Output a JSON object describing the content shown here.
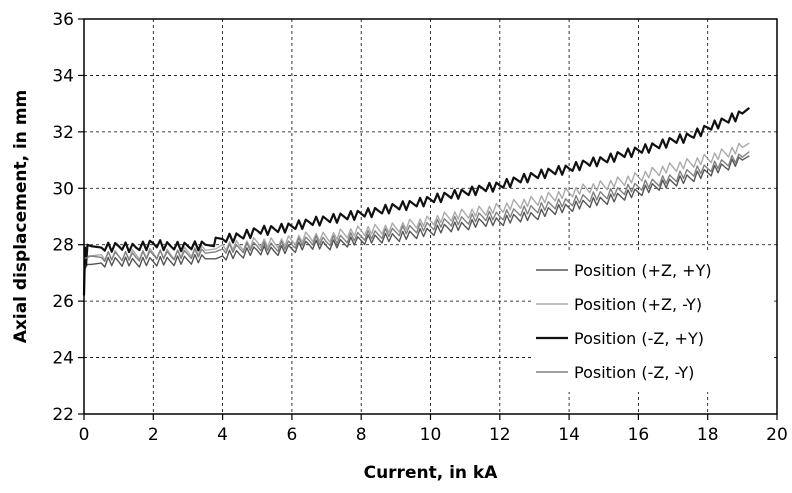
{
  "chart_data": {
    "type": "line",
    "title": "",
    "xlabel": "Current, in kA",
    "ylabel": "Axial displacement, in mm",
    "xlim": [
      0,
      20
    ],
    "ylim": [
      22,
      36
    ],
    "xticks": [
      0,
      2,
      4,
      6,
      8,
      10,
      12,
      14,
      16,
      18,
      20
    ],
    "yticks": [
      22,
      24,
      26,
      28,
      30,
      32,
      34,
      36
    ],
    "xtick_labels": [
      "0",
      "2",
      "4",
      "6",
      "8",
      "10",
      "12",
      "14",
      "16",
      "18",
      "20"
    ],
    "ytick_labels": [
      "22",
      "24",
      "26",
      "28",
      "30",
      "32",
      "34",
      "36"
    ],
    "grid": true,
    "legend_position": "lower-right",
    "series": [
      {
        "name": "Position (+Z, +Y)",
        "color": "#555555",
        "stroke_width": 1.4,
        "x": [
          0,
          0.1,
          0.2,
          0.5,
          1,
          1.5,
          2,
          2.5,
          3,
          3.5,
          3.8,
          4,
          4.5,
          5,
          5.5,
          6,
          6.5,
          7,
          7.5,
          8,
          8.5,
          9,
          9.5,
          10,
          10.5,
          11,
          11.5,
          12,
          12.5,
          13,
          13.5,
          14,
          14.5,
          15,
          15.5,
          16,
          16.5,
          17,
          17.5,
          18,
          18.5,
          19,
          19.2
        ],
        "y": [
          27.1,
          27.3,
          27.3,
          27.35,
          27.4,
          27.35,
          27.4,
          27.4,
          27.45,
          27.5,
          27.5,
          27.6,
          27.65,
          27.8,
          27.75,
          27.85,
          28.0,
          27.95,
          28.05,
          28.15,
          28.2,
          28.25,
          28.35,
          28.45,
          28.6,
          28.65,
          28.8,
          28.8,
          28.95,
          29.0,
          29.2,
          29.3,
          29.45,
          29.55,
          29.7,
          29.85,
          30.05,
          30.2,
          30.35,
          30.55,
          30.75,
          31.0,
          31.15
        ]
      },
      {
        "name": "Position (+Z, -Y)",
        "color": "#aaaaaa",
        "stroke_width": 1.4,
        "x": [
          0,
          0.1,
          0.2,
          0.5,
          1,
          1.5,
          2,
          2.5,
          3,
          3.5,
          3.8,
          4,
          4.5,
          5,
          5.5,
          6,
          6.5,
          7,
          7.5,
          8,
          8.5,
          9,
          9.5,
          10,
          10.5,
          11,
          11.5,
          12,
          12.5,
          13,
          13.5,
          14,
          14.5,
          15,
          15.5,
          16,
          16.5,
          17,
          17.5,
          18,
          18.5,
          19,
          19.2
        ],
        "y": [
          27.5,
          27.6,
          27.6,
          27.65,
          27.6,
          27.65,
          27.7,
          27.65,
          27.75,
          27.8,
          27.85,
          28.0,
          27.95,
          28.1,
          28.05,
          28.15,
          28.3,
          28.25,
          28.4,
          28.5,
          28.55,
          28.6,
          28.75,
          28.85,
          29.0,
          29.1,
          29.2,
          29.3,
          29.45,
          29.55,
          29.7,
          29.85,
          30.0,
          30.1,
          30.25,
          30.4,
          30.6,
          30.75,
          30.9,
          31.05,
          31.25,
          31.45,
          31.6
        ]
      },
      {
        "name": "Position (-Z, +Y)",
        "color": "#111111",
        "stroke_width": 2.2,
        "x": [
          0,
          0.03,
          0.06,
          0.1,
          0.2,
          0.5,
          1,
          1.5,
          2,
          2.5,
          3,
          3.5,
          3.75,
          3.8,
          4,
          4.5,
          5,
          5.5,
          6,
          6.5,
          7,
          7.5,
          8,
          8.5,
          9,
          9.5,
          10,
          10.5,
          11,
          11.5,
          12,
          12.5,
          13,
          13.5,
          14,
          14.5,
          15,
          15.5,
          16,
          16.5,
          17,
          17.5,
          18,
          18.5,
          19,
          19.2
        ],
        "y": [
          26.2,
          27.9,
          27.3,
          28.0,
          27.95,
          27.9,
          27.95,
          27.9,
          28.05,
          27.95,
          27.95,
          28.0,
          27.95,
          28.25,
          28.2,
          28.3,
          28.5,
          28.55,
          28.65,
          28.8,
          28.9,
          29.0,
          29.1,
          29.2,
          29.35,
          29.45,
          29.6,
          29.75,
          29.85,
          30.0,
          30.1,
          30.3,
          30.45,
          30.6,
          30.7,
          30.9,
          31.0,
          31.2,
          31.35,
          31.5,
          31.7,
          31.85,
          32.15,
          32.4,
          32.65,
          32.85
        ]
      },
      {
        "name": "Position (-Z, -Y)",
        "color": "#808080",
        "stroke_width": 1.4,
        "x": [
          0,
          0.1,
          0.2,
          0.5,
          1,
          1.5,
          2,
          2.5,
          3,
          3.5,
          3.8,
          4,
          4.5,
          5,
          5.5,
          6,
          6.5,
          7,
          7.5,
          8,
          8.5,
          9,
          9.5,
          10,
          10.5,
          11,
          11.5,
          12,
          12.5,
          13,
          13.5,
          14,
          14.5,
          15,
          15.5,
          16,
          16.5,
          17,
          17.5,
          18,
          18.5,
          19,
          19.2
        ],
        "y": [
          27.5,
          27.55,
          27.6,
          27.55,
          27.6,
          27.55,
          27.65,
          27.6,
          27.65,
          27.7,
          27.75,
          27.85,
          27.85,
          27.95,
          27.9,
          28.0,
          28.15,
          28.1,
          28.2,
          28.3,
          28.35,
          28.45,
          28.55,
          28.65,
          28.8,
          28.85,
          29.0,
          29.0,
          29.15,
          29.25,
          29.4,
          29.5,
          29.65,
          29.75,
          29.9,
          30.05,
          30.2,
          30.35,
          30.55,
          30.7,
          30.9,
          31.1,
          31.3
        ]
      }
    ]
  }
}
